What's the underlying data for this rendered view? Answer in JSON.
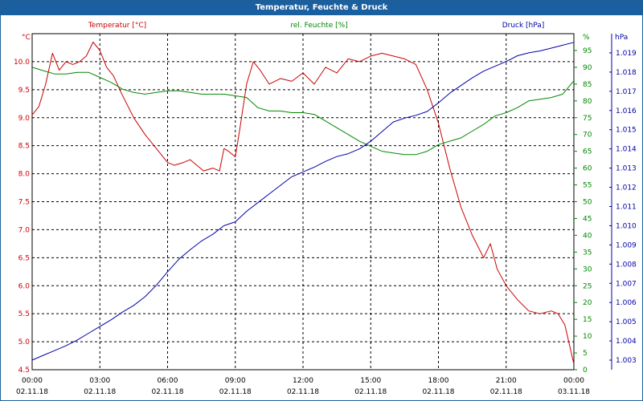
{
  "window": {
    "title": "Temperatur, Feuchte & Druck"
  },
  "colors": {
    "temperature": "#cc0000",
    "humidity": "#008800",
    "pressure": "#0000aa",
    "grid": "#000000",
    "frame": "#1a5f9f"
  },
  "chart_data": {
    "type": "line",
    "title": "Temperatur, Feuchte & Druck",
    "x_ticks": [
      {
        "time": "00:00",
        "date": "02.11.18",
        "h": 0
      },
      {
        "time": "03:00",
        "date": "02.11.18",
        "h": 3
      },
      {
        "time": "06:00",
        "date": "02.11.18",
        "h": 6
      },
      {
        "time": "09:00",
        "date": "02.11.18",
        "h": 9
      },
      {
        "time": "12:00",
        "date": "02.11.18",
        "h": 12
      },
      {
        "time": "15:00",
        "date": "02.11.18",
        "h": 15
      },
      {
        "time": "18:00",
        "date": "02.11.18",
        "h": 18
      },
      {
        "time": "21:00",
        "date": "02.11.18",
        "h": 21
      },
      {
        "time": "00:00",
        "date": "03.11.18",
        "h": 24
      }
    ],
    "x_range_hours": [
      0,
      24
    ],
    "axes": {
      "temperature": {
        "legend": "Temperatur [°C]",
        "unit": "°C",
        "range": [
          4.5,
          10.5
        ],
        "ticks": [
          "4.5",
          "5.0",
          "5.5",
          "6.0",
          "6.5",
          "7.0",
          "7.5",
          "8.0",
          "8.5",
          "9.0",
          "9.5",
          "10.0"
        ]
      },
      "humidity": {
        "legend": "rel. Feuchte [%]",
        "unit": "%",
        "range": [
          0,
          100
        ],
        "ticks": [
          "0",
          "5",
          "10",
          "15",
          "20",
          "25",
          "30",
          "35",
          "40",
          "45",
          "50",
          "55",
          "60",
          "65",
          "70",
          "75",
          "80",
          "85",
          "90",
          "95"
        ]
      },
      "pressure": {
        "legend": "Druck [hPa]",
        "unit": "hPa",
        "range": [
          1002.5,
          1020.0
        ],
        "ticks": [
          "1.003",
          "1.004",
          "1.005",
          "1.006",
          "1.007",
          "1.008",
          "1.009",
          "1.010",
          "1.011",
          "1.012",
          "1.013",
          "1.014",
          "1.015",
          "1.016",
          "1.017",
          "1.018",
          "1.019"
        ]
      }
    },
    "series": [
      {
        "name": "Temperatur [°C]",
        "axis": "temperature",
        "points": [
          [
            0,
            9.05
          ],
          [
            0.3,
            9.2
          ],
          [
            0.6,
            9.6
          ],
          [
            0.9,
            10.15
          ],
          [
            1.2,
            9.85
          ],
          [
            1.5,
            10.0
          ],
          [
            1.8,
            9.95
          ],
          [
            2.1,
            10.0
          ],
          [
            2.4,
            10.1
          ],
          [
            2.7,
            10.35
          ],
          [
            3.0,
            10.2
          ],
          [
            3.3,
            9.9
          ],
          [
            3.6,
            9.75
          ],
          [
            4.0,
            9.4
          ],
          [
            4.5,
            9.0
          ],
          [
            5.0,
            8.7
          ],
          [
            5.5,
            8.45
          ],
          [
            6.0,
            8.2
          ],
          [
            6.3,
            8.15
          ],
          [
            6.7,
            8.2
          ],
          [
            7.0,
            8.25
          ],
          [
            7.3,
            8.15
          ],
          [
            7.6,
            8.05
          ],
          [
            8.0,
            8.1
          ],
          [
            8.3,
            8.05
          ],
          [
            8.5,
            8.45
          ],
          [
            8.7,
            8.4
          ],
          [
            9.0,
            8.3
          ],
          [
            9.2,
            8.8
          ],
          [
            9.5,
            9.6
          ],
          [
            9.8,
            10.0
          ],
          [
            10.1,
            9.85
          ],
          [
            10.5,
            9.6
          ],
          [
            11.0,
            9.7
          ],
          [
            11.5,
            9.65
          ],
          [
            12.0,
            9.8
          ],
          [
            12.5,
            9.6
          ],
          [
            13.0,
            9.9
          ],
          [
            13.5,
            9.8
          ],
          [
            14.0,
            10.05
          ],
          [
            14.5,
            10.0
          ],
          [
            15.0,
            10.1
          ],
          [
            15.5,
            10.15
          ],
          [
            16.0,
            10.1
          ],
          [
            16.5,
            10.05
          ],
          [
            17.0,
            9.95
          ],
          [
            17.5,
            9.5
          ],
          [
            18.0,
            8.9
          ],
          [
            18.5,
            8.1
          ],
          [
            19.0,
            7.4
          ],
          [
            19.5,
            6.9
          ],
          [
            20.0,
            6.5
          ],
          [
            20.3,
            6.75
          ],
          [
            20.6,
            6.3
          ],
          [
            21.0,
            6.0
          ],
          [
            21.5,
            5.75
          ],
          [
            22.0,
            5.55
          ],
          [
            22.5,
            5.5
          ],
          [
            23.0,
            5.55
          ],
          [
            23.3,
            5.5
          ],
          [
            23.6,
            5.3
          ],
          [
            24.0,
            4.6
          ]
        ]
      },
      {
        "name": "rel. Feuchte [%]",
        "axis": "humidity",
        "points": [
          [
            0,
            90
          ],
          [
            0.5,
            89
          ],
          [
            1.0,
            88
          ],
          [
            1.5,
            88
          ],
          [
            2.0,
            88.5
          ],
          [
            2.5,
            88.5
          ],
          [
            3.0,
            87
          ],
          [
            3.5,
            85.5
          ],
          [
            4.0,
            83.5
          ],
          [
            4.5,
            82.5
          ],
          [
            5.0,
            82
          ],
          [
            5.5,
            82.5
          ],
          [
            6.0,
            83
          ],
          [
            6.5,
            83
          ],
          [
            7.0,
            82.5
          ],
          [
            7.5,
            82
          ],
          [
            8.0,
            82
          ],
          [
            8.5,
            82
          ],
          [
            9.0,
            81.5
          ],
          [
            9.5,
            81
          ],
          [
            10.0,
            78
          ],
          [
            10.5,
            77
          ],
          [
            11.0,
            77
          ],
          [
            11.5,
            76.5
          ],
          [
            12.0,
            76.5
          ],
          [
            12.5,
            76
          ],
          [
            13.0,
            74
          ],
          [
            13.5,
            72
          ],
          [
            14.0,
            70
          ],
          [
            14.5,
            68
          ],
          [
            15.0,
            66.5
          ],
          [
            15.5,
            65
          ],
          [
            16.0,
            64.5
          ],
          [
            16.5,
            64
          ],
          [
            17.0,
            64
          ],
          [
            17.5,
            65
          ],
          [
            18.0,
            67
          ],
          [
            18.5,
            68
          ],
          [
            19.0,
            69
          ],
          [
            19.5,
            71
          ],
          [
            20.0,
            73
          ],
          [
            20.5,
            75.5
          ],
          [
            21.0,
            76.5
          ],
          [
            21.5,
            78
          ],
          [
            22.0,
            80
          ],
          [
            22.5,
            80.5
          ],
          [
            23.0,
            81
          ],
          [
            23.5,
            82
          ],
          [
            24.0,
            86
          ]
        ]
      },
      {
        "name": "Druck [hPa]",
        "axis": "pressure",
        "points": [
          [
            0,
            1003.0
          ],
          [
            0.5,
            1003.25
          ],
          [
            1.0,
            1003.5
          ],
          [
            1.5,
            1003.75
          ],
          [
            2.0,
            1004.05
          ],
          [
            2.5,
            1004.4
          ],
          [
            3.0,
            1004.75
          ],
          [
            3.5,
            1005.1
          ],
          [
            4.0,
            1005.5
          ],
          [
            4.5,
            1005.85
          ],
          [
            5.0,
            1006.3
          ],
          [
            5.5,
            1006.9
          ],
          [
            6.0,
            1007.6
          ],
          [
            6.5,
            1008.25
          ],
          [
            7.0,
            1008.75
          ],
          [
            7.5,
            1009.2
          ],
          [
            8.0,
            1009.55
          ],
          [
            8.5,
            1010.0
          ],
          [
            9.0,
            1010.2
          ],
          [
            9.5,
            1010.75
          ],
          [
            10.0,
            1011.2
          ],
          [
            10.5,
            1011.65
          ],
          [
            11.0,
            1012.1
          ],
          [
            11.5,
            1012.55
          ],
          [
            12.0,
            1012.8
          ],
          [
            12.5,
            1013.05
          ],
          [
            13.0,
            1013.35
          ],
          [
            13.5,
            1013.6
          ],
          [
            14.0,
            1013.75
          ],
          [
            14.5,
            1014.0
          ],
          [
            15.0,
            1014.4
          ],
          [
            15.5,
            1014.9
          ],
          [
            16.0,
            1015.4
          ],
          [
            16.5,
            1015.6
          ],
          [
            17.0,
            1015.75
          ],
          [
            17.5,
            1015.95
          ],
          [
            18.0,
            1016.4
          ],
          [
            18.5,
            1016.9
          ],
          [
            19.0,
            1017.3
          ],
          [
            19.5,
            1017.7
          ],
          [
            20.0,
            1018.05
          ],
          [
            20.5,
            1018.3
          ],
          [
            21.0,
            1018.55
          ],
          [
            21.5,
            1018.85
          ],
          [
            22.0,
            1019.0
          ],
          [
            22.5,
            1019.1
          ],
          [
            23.0,
            1019.25
          ],
          [
            23.5,
            1019.4
          ],
          [
            24.0,
            1019.55
          ]
        ]
      }
    ]
  }
}
